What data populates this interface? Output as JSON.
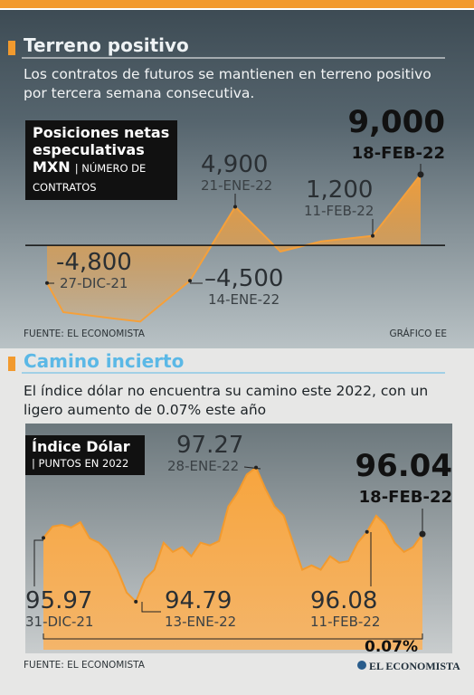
{
  "header": {
    "title": "Terreno positivo",
    "subtitle": "Los contratos de futuros se mantienen en terreno positivo por tercera semana consecutiva.",
    "source": "FUENTE: EL ECONOMISTA",
    "credit": "GRÁFICO EE"
  },
  "section2": {
    "title": "Camino incierto",
    "subtitle": "El índice dólar no encuentra su camino este 2022, con un ligero aumento de 0.07% este año",
    "source": "FUENTE: EL ECONOMISTA",
    "logo": "EL ECONOMISTA"
  },
  "chart_data": [
    {
      "type": "area",
      "legend_title": "Posiciones netas especulativas MXN",
      "legend_unit": "| NÚMERO DE CONTRATOS",
      "categories": [
        "27-DIC-21",
        null,
        null,
        null,
        "14-ENE-22",
        "21-ENE-22",
        null,
        null,
        "11-FEB-22",
        "18-FEB-22"
      ],
      "values": [
        -4800,
        -8500,
        -9300,
        -9700,
        -4500,
        4900,
        -800,
        500,
        1200,
        9000
      ],
      "value_labels": [
        "-4,800",
        null,
        null,
        null,
        "–4,500",
        "4,900",
        null,
        null,
        "1,200",
        "9,000"
      ],
      "color": "#f5a03a",
      "ylim": [
        -10000,
        16000
      ]
    },
    {
      "type": "area",
      "legend_title": "Índice Dólar",
      "legend_unit": "| PUNTOS EN 2022",
      "categories": [
        "31-DIC-21",
        null,
        null,
        null,
        null,
        null,
        null,
        null,
        null,
        null,
        "13-ENE-22",
        null,
        null,
        null,
        null,
        null,
        null,
        null,
        null,
        null,
        null,
        null,
        null,
        "28-ENE-22",
        null,
        null,
        null,
        null,
        null,
        null,
        null,
        null,
        null,
        null,
        null,
        "11-FEB-22",
        null,
        null,
        null,
        null,
        null,
        "18-FEB-22"
      ],
      "values": [
        95.97,
        96.18,
        96.21,
        96.16,
        96.26,
        95.96,
        95.88,
        95.71,
        95.38,
        94.96,
        94.79,
        95.21,
        95.38,
        95.88,
        95.71,
        95.8,
        95.63,
        95.88,
        95.83,
        95.91,
        96.55,
        96.8,
        97.14,
        97.27,
        96.88,
        96.55,
        96.38,
        95.88,
        95.38,
        95.46,
        95.38,
        95.63,
        95.51,
        95.54,
        95.88,
        96.08,
        96.38,
        96.21,
        95.88,
        95.71,
        95.8,
        96.04
      ],
      "color": "#f29a2e",
      "ylim": [
        93.9,
        97.9
      ],
      "annotation": "0.07%"
    }
  ]
}
